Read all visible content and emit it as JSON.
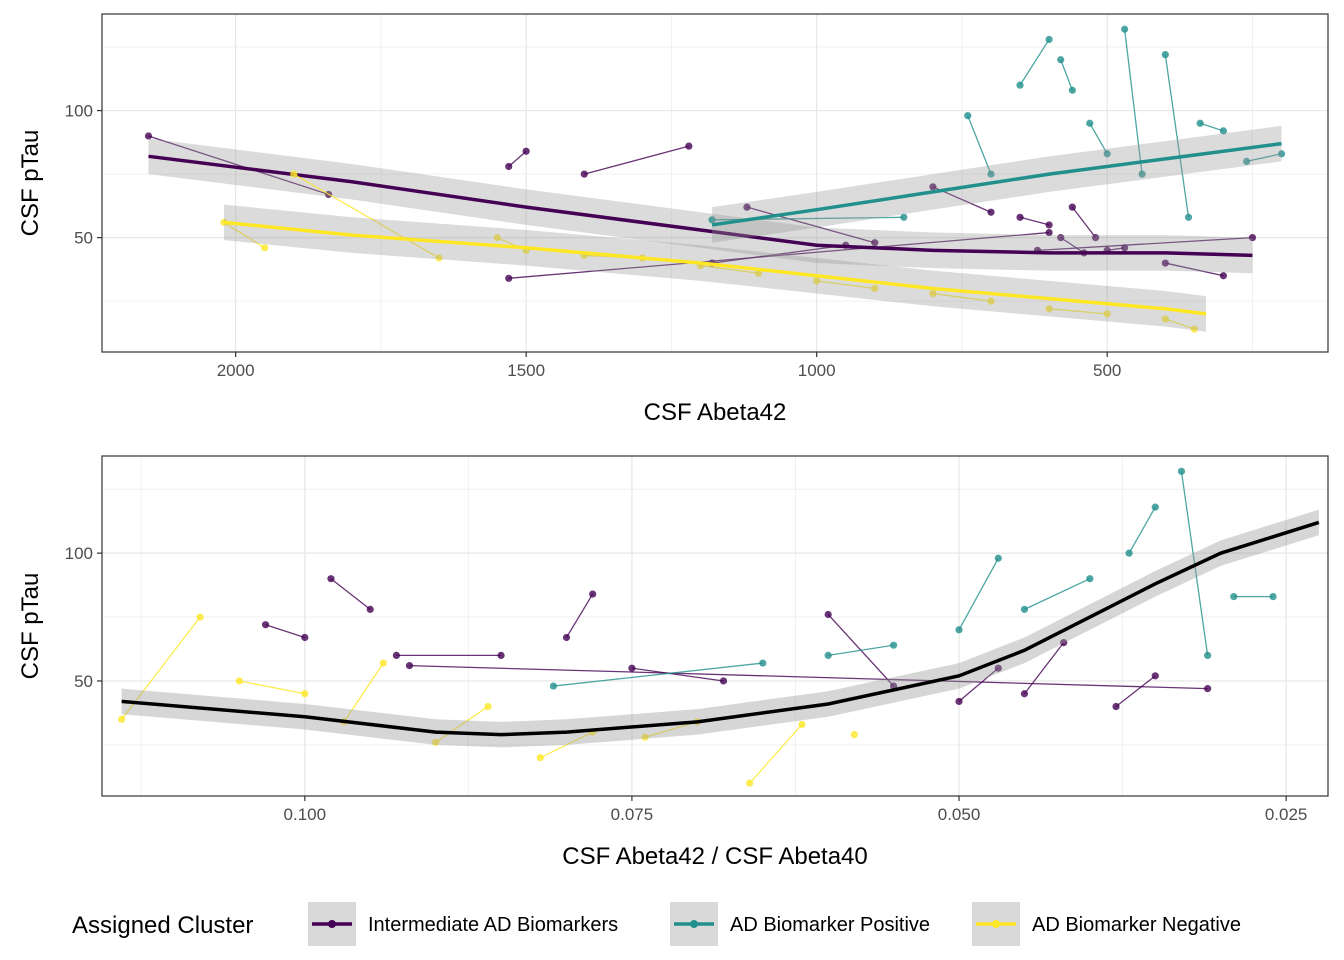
{
  "chart_data": [
    {
      "type": "scatter",
      "xlabel": "CSF Abeta42",
      "ylabel": "CSF pTau",
      "x_reversed": true,
      "xlim": [
        2230,
        120
      ],
      "ylim": [
        5,
        138
      ],
      "xticks": [
        2000,
        1500,
        1000,
        500
      ],
      "yticks": [
        50,
        100
      ],
      "grid": true,
      "series": [
        {
          "name": "Intermediate AD Biomarkers",
          "color": "#440154",
          "x": [
            2150,
            1840,
            1530,
            1500,
            1400,
            1220,
            1120,
            900,
            800,
            700,
            650,
            600,
            560,
            520,
            500,
            470,
            400,
            300,
            250,
            620,
            580,
            540,
            600,
            1530,
            1180,
            950
          ],
          "y": [
            90,
            67,
            78,
            84,
            75,
            86,
            62,
            48,
            70,
            60,
            58,
            55,
            62,
            50,
            45,
            46,
            40,
            35,
            50,
            45,
            50,
            44,
            52,
            34,
            40,
            47
          ],
          "trend": {
            "x": [
              2150,
              1800,
              1500,
              1200,
              1000,
              800,
              600,
              400,
              250
            ],
            "y": [
              82,
              72,
              62,
              53,
              47,
              45,
              44,
              44,
              43
            ]
          }
        },
        {
          "name": "AD Biomarker Positive",
          "color": "#21908C",
          "x": [
            1180,
            850,
            740,
            700,
            650,
            600,
            580,
            560,
            530,
            500,
            470,
            440,
            400,
            360,
            340,
            300,
            260,
            200
          ],
          "y": [
            57,
            58,
            98,
            75,
            110,
            128,
            120,
            108,
            95,
            83,
            132,
            75,
            122,
            58,
            95,
            92,
            80,
            83
          ],
          "trend": {
            "x": [
              1180,
              1000,
              800,
              600,
              400,
              200
            ],
            "y": [
              55,
              61,
              68,
              75,
              81,
              87
            ]
          }
        },
        {
          "name": "AD Biomarker Negative",
          "color": "#FDE725",
          "x": [
            2020,
            1950,
            1900,
            1650,
            1550,
            1500,
            1400,
            1300,
            1200,
            1100,
            1000,
            900,
            800,
            700,
            600,
            500,
            400,
            350
          ],
          "y": [
            56,
            46,
            75,
            42,
            50,
            45,
            43,
            42,
            39,
            36,
            33,
            30,
            28,
            25,
            22,
            20,
            18,
            14
          ],
          "trend": {
            "x": [
              2020,
              1800,
              1500,
              1200,
              1000,
              800,
              600,
              400,
              330
            ],
            "y": [
              56,
              51,
              46,
              40,
              35,
              30,
              26,
              22,
              20
            ]
          }
        }
      ]
    },
    {
      "type": "scatter",
      "xlabel": "CSF Abeta42 / CSF Abeta40",
      "ylabel": "CSF pTau",
      "x_reversed": true,
      "xlim": [
        0.1155,
        0.0218
      ],
      "ylim": [
        5,
        138
      ],
      "xticks": [
        0.1,
        0.075,
        0.05,
        0.025
      ],
      "xtick_labels": [
        "0.100",
        "0.075",
        "0.050",
        "0.025"
      ],
      "yticks": [
        50,
        100
      ],
      "grid": true,
      "series": [
        {
          "name": "Intermediate AD Biomarkers",
          "color": "#440154",
          "x": [
            0.103,
            0.1,
            0.098,
            0.095,
            0.093,
            0.085,
            0.08,
            0.078,
            0.075,
            0.068,
            0.06,
            0.055,
            0.05,
            0.047,
            0.045,
            0.042,
            0.038,
            0.035,
            0.031,
            0.092
          ],
          "y": [
            72,
            67,
            90,
            78,
            60,
            60,
            67,
            84,
            55,
            50,
            76,
            48,
            42,
            55,
            45,
            65,
            40,
            52,
            47,
            56
          ],
          "trend": null
        },
        {
          "name": "AD Biomarker Positive",
          "color": "#21908C",
          "x": [
            0.081,
            0.065,
            0.06,
            0.055,
            0.05,
            0.047,
            0.045,
            0.04,
            0.037,
            0.035,
            0.033,
            0.031,
            0.029,
            0.026
          ],
          "y": [
            48,
            57,
            60,
            64,
            70,
            98,
            78,
            90,
            100,
            118,
            132,
            60,
            83,
            83
          ],
          "trend": null
        },
        {
          "name": "AD Biomarker Negative",
          "color": "#FDE725",
          "x": [
            0.114,
            0.108,
            0.105,
            0.1,
            0.097,
            0.094,
            0.09,
            0.086,
            0.082,
            0.078,
            0.074,
            0.07,
            0.066,
            0.062,
            0.058
          ],
          "y": [
            35,
            75,
            50,
            45,
            34,
            57,
            26,
            40,
            20,
            30,
            28,
            34,
            10,
            33,
            29
          ],
          "trend": null
        }
      ],
      "overall_trend": {
        "color": "#000000",
        "x": [
          0.114,
          0.1,
          0.09,
          0.085,
          0.08,
          0.07,
          0.06,
          0.05,
          0.045,
          0.04,
          0.035,
          0.03,
          0.0225
        ],
        "y": [
          42,
          36,
          30,
          29,
          30,
          34,
          41,
          52,
          62,
          75,
          88,
          100,
          112
        ]
      }
    }
  ],
  "legend": {
    "title": "Assigned Cluster",
    "items": [
      {
        "label": "Intermediate AD Biomarkers",
        "color": "#440154"
      },
      {
        "label": "AD Biomarker Positive",
        "color": "#21908C"
      },
      {
        "label": "AD Biomarker Negative",
        "color": "#FDE725"
      }
    ]
  }
}
